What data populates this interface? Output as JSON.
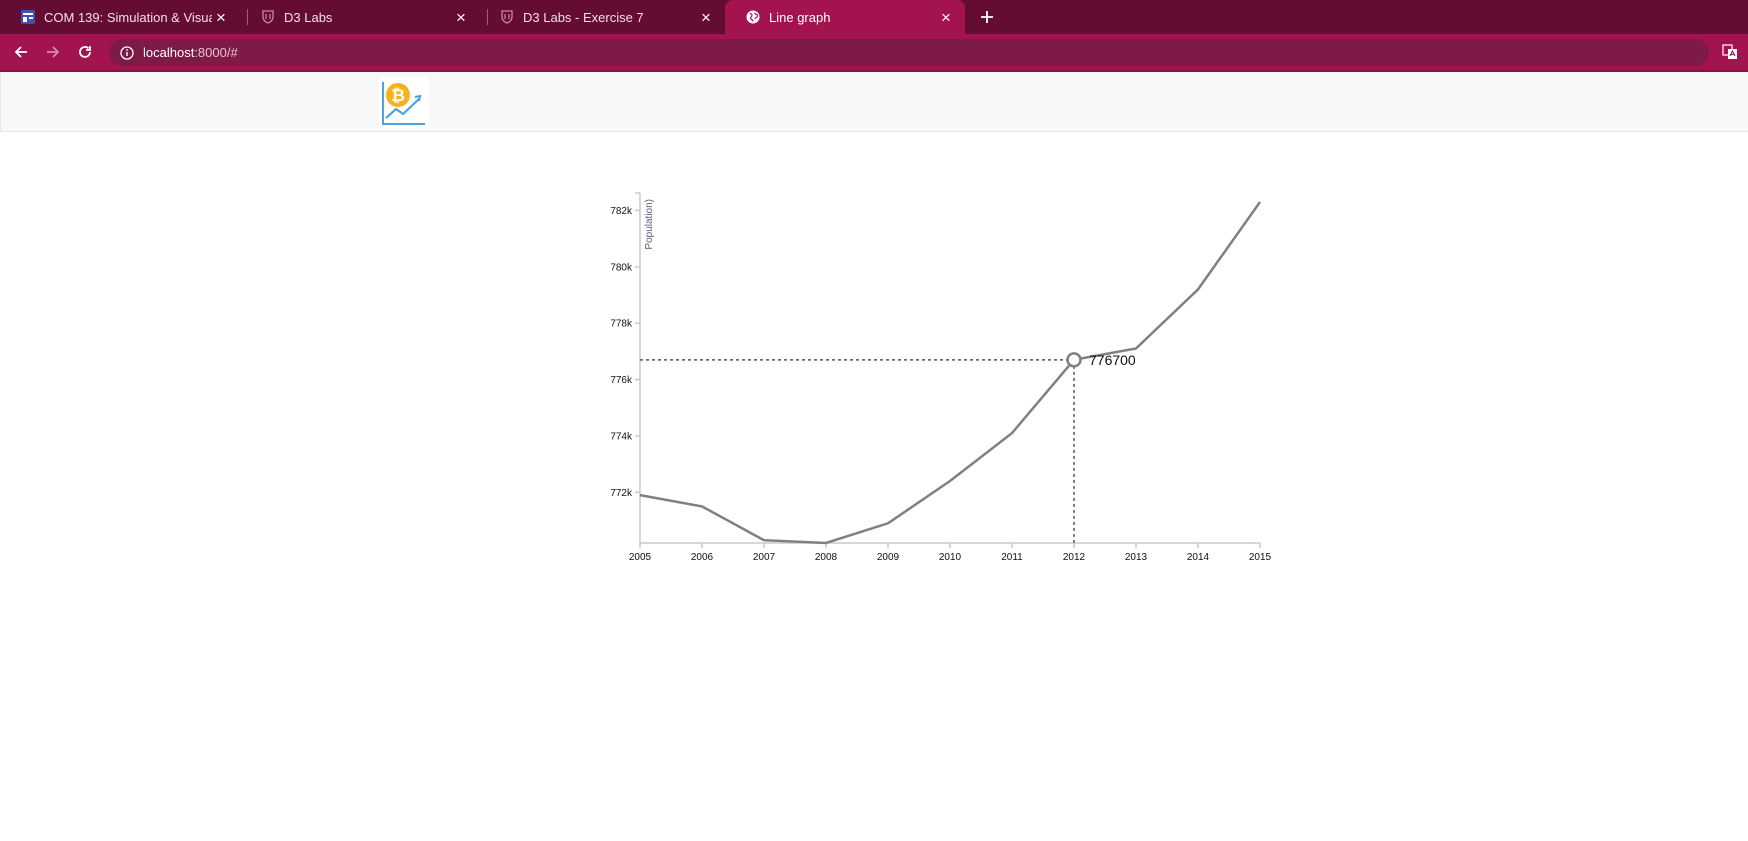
{
  "browser": {
    "tabs": [
      {
        "title": "COM 139: Simulation & Visualization",
        "favicon": "calendar-icon",
        "active": false
      },
      {
        "title": "D3 Labs",
        "favicon": "crest-icon",
        "active": false
      },
      {
        "title": "D3 Labs - Exercise 7",
        "favicon": "crest-icon",
        "active": false
      },
      {
        "title": "Line graph",
        "favicon": "globe-icon",
        "active": true
      }
    ],
    "url_host": "localhost",
    "url_path": ":8000/#"
  },
  "page": {
    "logo_icon": "bitcoin-chart-logo-icon"
  },
  "chart_data": {
    "type": "line",
    "title": "",
    "xlabel": "",
    "ylabel": "Population)",
    "x": [
      2005,
      2006,
      2007,
      2008,
      2009,
      2010,
      2011,
      2012,
      2013,
      2014,
      2015
    ],
    "values": [
      771900,
      771500,
      770300,
      770200,
      770900,
      772400,
      774100,
      776700,
      777100,
      779200,
      782300
    ],
    "xlim": [
      2005,
      2015
    ],
    "ylim": [
      770200,
      782300
    ],
    "y_ticks": [
      772000,
      774000,
      776000,
      778000,
      780000,
      782000
    ],
    "y_tick_labels": [
      "772k",
      "774k",
      "776k",
      "778k",
      "780k",
      "782k"
    ],
    "x_tick_labels": [
      "2005",
      "2006",
      "2007",
      "2008",
      "2009",
      "2010",
      "2011",
      "2012",
      "2013",
      "2014",
      "2015"
    ],
    "focus": {
      "x": 2012,
      "y": 776700,
      "label": "776700"
    },
    "line_color": "#808080",
    "grid": false
  }
}
